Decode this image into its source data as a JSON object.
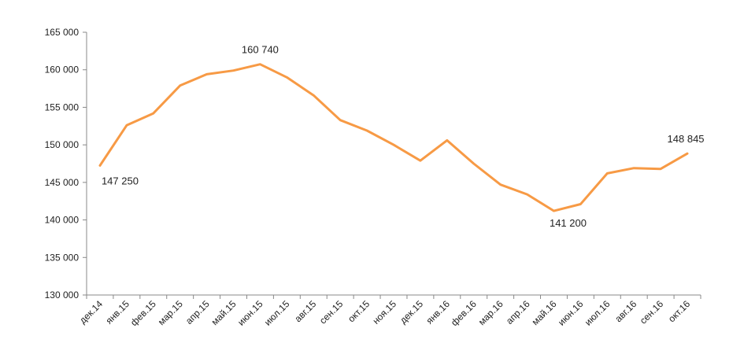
{
  "chart_data": {
    "type": "line",
    "title": "",
    "xlabel": "",
    "ylabel": "",
    "ylim": [
      130000,
      165000
    ],
    "yticks": [
      130000,
      135000,
      140000,
      145000,
      150000,
      155000,
      160000,
      165000
    ],
    "ytick_labels": [
      "130 000",
      "135 000",
      "140 000",
      "145 000",
      "150 000",
      "155 000",
      "160 000",
      "165 000"
    ],
    "grid": false,
    "line_color": "#F79A45",
    "categories": [
      "дек.14",
      "янв.15",
      "фев.15",
      "мар.15",
      "апр.15",
      "май.15",
      "июн.15",
      "июл.15",
      "авг.15",
      "сен.15",
      "окт.15",
      "ноя.15",
      "дек.15",
      "янв.16",
      "фев.16",
      "мар.16",
      "апр.16",
      "май.16",
      "июн.16",
      "июл.16",
      "авг.16",
      "сен.16",
      "окт.16"
    ],
    "values": [
      147250,
      152600,
      154200,
      157900,
      159400,
      159900,
      160740,
      159000,
      156600,
      153300,
      151900,
      150000,
      147900,
      150600,
      147500,
      144700,
      143400,
      141200,
      142100,
      146200,
      146900,
      146800,
      148845
    ],
    "annotations": [
      {
        "index": 0,
        "text": "147 250"
      },
      {
        "index": 6,
        "text": "160 740"
      },
      {
        "index": 17,
        "text": "141 200"
      },
      {
        "index": 22,
        "text": "148 845"
      }
    ]
  }
}
